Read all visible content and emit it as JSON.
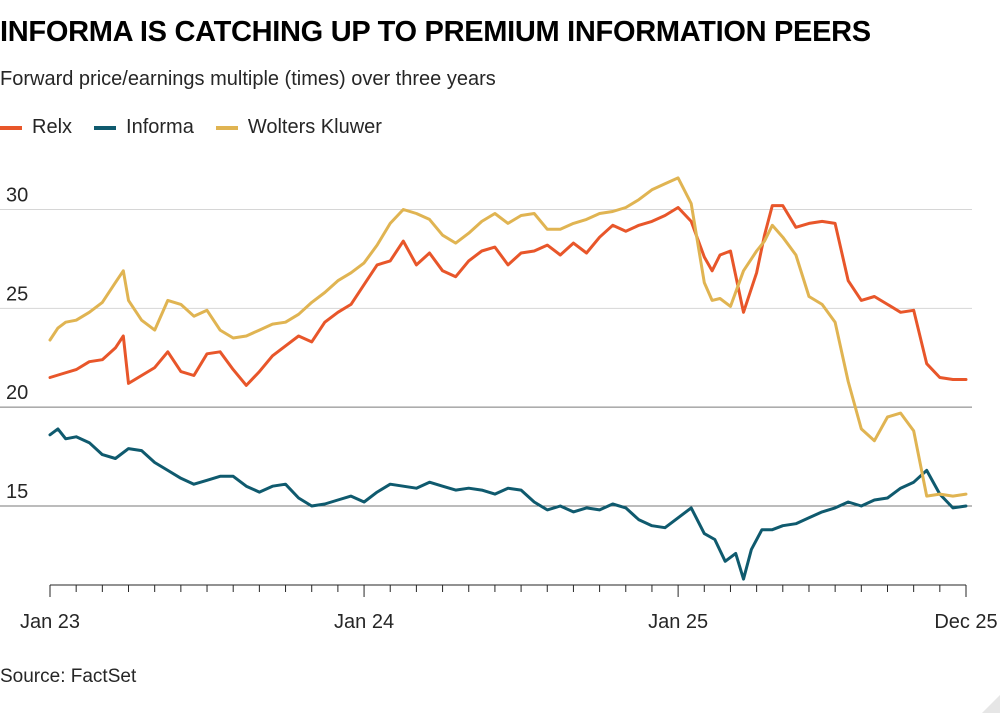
{
  "header": {
    "title": "INFORMA IS CATCHING UP TO PREMIUM INFORMATION PEERS",
    "subtitle": "Forward price/earnings multiple (times) over three years"
  },
  "footer": {
    "source": "Source: FactSet"
  },
  "colors": {
    "relx": "#e8562a",
    "informa": "#0f5a6e",
    "wolters": "#e0b452"
  },
  "chart_data": {
    "type": "line",
    "title": "INFORMA IS CATCHING UP TO PREMIUM INFORMATION PEERS",
    "subtitle": "Forward price/earnings multiple (times) over three years",
    "xlabel": "",
    "ylabel": "",
    "x_start": "Jan 23",
    "x_end": "Dec 25",
    "x_ticks": [
      {
        "label": "Jan 23",
        "x": 0
      },
      {
        "label": "Jan 24",
        "x": 12
      },
      {
        "label": "Jan 25",
        "x": 24
      },
      {
        "label": "Dec 25",
        "x": 35
      }
    ],
    "xlim": [
      0,
      35
    ],
    "ylim": [
      11,
      32
    ],
    "y_ticks": [
      15,
      20,
      25,
      30
    ],
    "grid": true,
    "legend_position": "top-left",
    "series": [
      {
        "name": "Relx",
        "x": [
          0,
          0.5,
          1,
          1.5,
          2,
          2.5,
          2.8,
          3,
          3.5,
          4,
          4.5,
          5,
          5.5,
          6,
          6.5,
          7,
          7.5,
          8,
          8.5,
          9,
          9.5,
          10,
          10.5,
          11,
          11.5,
          12,
          12.5,
          13,
          13.5,
          14,
          14.5,
          15,
          15.5,
          16,
          16.5,
          17,
          17.5,
          18,
          18.5,
          19,
          19.5,
          20,
          20.5,
          21,
          21.5,
          22,
          22.5,
          23,
          23.5,
          24,
          24.5,
          25,
          25.3,
          25.6,
          26,
          26.5,
          27,
          27.3,
          27.6,
          28,
          28.5,
          29,
          29.5,
          30,
          30.5,
          31,
          31.5,
          32,
          32.5,
          33,
          33.5,
          34,
          34.5,
          35
        ],
        "values": [
          21.5,
          21.7,
          21.9,
          22.3,
          22.4,
          23,
          23.6,
          21.2,
          21.6,
          22,
          22.8,
          21.8,
          21.6,
          22.7,
          22.8,
          21.9,
          21.1,
          21.8,
          22.6,
          23.1,
          23.6,
          23.3,
          24.3,
          24.8,
          25.2,
          26.2,
          27.2,
          27.4,
          28.4,
          27.2,
          27.8,
          26.9,
          26.6,
          27.4,
          27.9,
          28.1,
          27.2,
          27.8,
          27.9,
          28.2,
          27.7,
          28.3,
          27.8,
          28.6,
          29.2,
          28.9,
          29.2,
          29.4,
          29.7,
          30.1,
          29.4,
          27.6,
          26.9,
          27.7,
          27.9,
          24.8,
          26.8,
          28.7,
          30.2,
          30.2,
          29.1,
          29.3,
          29.4,
          29.3,
          26.4,
          25.4,
          25.6,
          25.2,
          24.8,
          24.9,
          22.2,
          21.5,
          21.4,
          21.4
        ]
      },
      {
        "name": "Informa",
        "x": [
          0,
          0.3,
          0.6,
          1,
          1.5,
          2,
          2.5,
          3,
          3.5,
          4,
          4.5,
          5,
          5.5,
          6,
          6.5,
          7,
          7.5,
          8,
          8.5,
          9,
          9.5,
          10,
          10.5,
          11,
          11.5,
          12,
          12.5,
          13,
          13.5,
          14,
          14.5,
          15,
          15.5,
          16,
          16.5,
          17,
          17.5,
          18,
          18.5,
          19,
          19.5,
          20,
          20.5,
          21,
          21.5,
          22,
          22.5,
          23,
          23.5,
          24,
          24.5,
          25,
          25.4,
          25.8,
          26.2,
          26.5,
          26.8,
          27.2,
          27.6,
          28,
          28.5,
          29,
          29.5,
          30,
          30.5,
          31,
          31.5,
          32,
          32.5,
          33,
          33.5,
          34,
          34.5,
          35
        ],
        "values": [
          18.6,
          18.9,
          18.4,
          18.5,
          18.2,
          17.6,
          17.4,
          17.9,
          17.8,
          17.2,
          16.8,
          16.4,
          16.1,
          16.3,
          16.5,
          16.5,
          16,
          15.7,
          16,
          16.1,
          15.4,
          15,
          15.1,
          15.3,
          15.5,
          15.2,
          15.7,
          16.1,
          16,
          15.9,
          16.2,
          16,
          15.8,
          15.9,
          15.8,
          15.6,
          15.9,
          15.8,
          15.2,
          14.8,
          15,
          14.7,
          14.9,
          14.8,
          15.1,
          14.9,
          14.3,
          14,
          13.9,
          14.4,
          14.9,
          13.6,
          13.3,
          12.2,
          12.6,
          11.3,
          12.8,
          13.8,
          13.8,
          14,
          14.1,
          14.4,
          14.7,
          14.9,
          15.2,
          15,
          15.3,
          15.4,
          15.9,
          16.2,
          16.8,
          15.6,
          14.9,
          15
        ]
      },
      {
        "name": "Wolters Kluwer",
        "x": [
          0,
          0.3,
          0.6,
          1,
          1.5,
          2,
          2.5,
          2.8,
          3,
          3.5,
          4,
          4.5,
          5,
          5.5,
          6,
          6.5,
          7,
          7.5,
          8,
          8.5,
          9,
          9.5,
          10,
          10.5,
          11,
          11.5,
          12,
          12.5,
          13,
          13.5,
          14,
          14.5,
          15,
          15.5,
          16,
          16.5,
          17,
          17.5,
          18,
          18.5,
          19,
          19.5,
          20,
          20.5,
          21,
          21.5,
          22,
          22.5,
          23,
          23.5,
          24,
          24.5,
          25,
          25.3,
          25.6,
          26,
          26.5,
          27,
          27.3,
          27.6,
          28,
          28.5,
          29,
          29.5,
          30,
          30.5,
          31,
          31.5,
          32,
          32.5,
          33,
          33.5,
          34,
          34.5,
          35
        ],
        "values": [
          23.4,
          24,
          24.3,
          24.4,
          24.8,
          25.3,
          26.3,
          26.9,
          25.4,
          24.4,
          23.9,
          25.4,
          25.2,
          24.6,
          24.9,
          23.9,
          23.5,
          23.6,
          23.9,
          24.2,
          24.3,
          24.7,
          25.3,
          25.8,
          26.4,
          26.8,
          27.3,
          28.2,
          29.3,
          30,
          29.8,
          29.5,
          28.7,
          28.3,
          28.8,
          29.4,
          29.8,
          29.3,
          29.7,
          29.8,
          29,
          29,
          29.3,
          29.5,
          29.8,
          29.9,
          30.1,
          30.5,
          31,
          31.3,
          31.6,
          30.3,
          26.3,
          25.4,
          25.5,
          25.1,
          26.9,
          27.9,
          28.4,
          29.2,
          28.6,
          27.7,
          25.6,
          25.2,
          24.3,
          21.3,
          18.9,
          18.3,
          19.5,
          19.7,
          18.8,
          15.5,
          15.6,
          15.5,
          15.6
        ]
      }
    ]
  }
}
